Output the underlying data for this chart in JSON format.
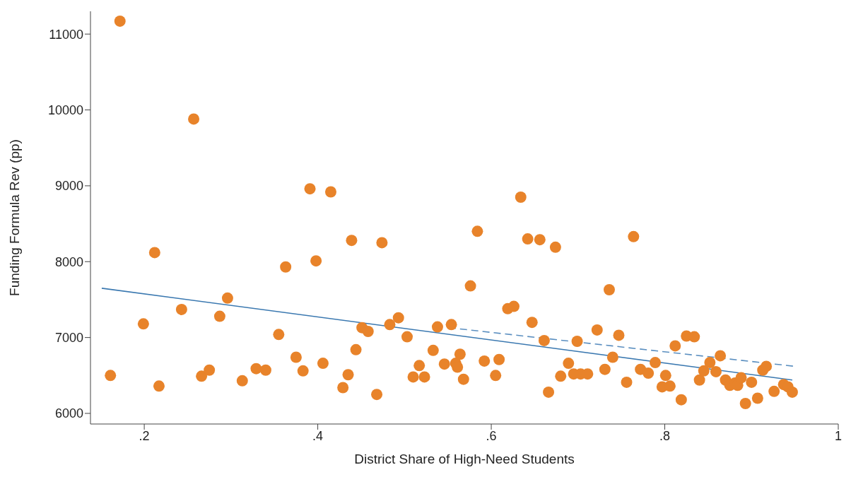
{
  "chart_data": {
    "type": "scatter",
    "xlabel": "District Share of High-Need Students",
    "ylabel": "Funding Formula Rev (pp)",
    "xlim": [
      0.138,
      1
    ],
    "ylim": [
      5860,
      11300
    ],
    "xticks": [
      {
        "value": 0.2,
        "label": ".2"
      },
      {
        "value": 0.4,
        "label": ".4"
      },
      {
        "value": 0.6,
        "label": ".6"
      },
      {
        "value": 0.8,
        "label": ".8"
      },
      1
    ],
    "yticks": [
      6000,
      7000,
      8000,
      9000,
      10000,
      11000
    ],
    "grid": false,
    "legend": false,
    "series": [
      {
        "marker": "circle",
        "color": "#e8832a",
        "x": [
          0.161,
          0.172,
          0.199,
          0.212,
          0.217,
          0.243,
          0.257,
          0.266,
          0.275,
          0.287,
          0.296,
          0.313,
          0.329,
          0.34,
          0.355,
          0.363,
          0.375,
          0.383,
          0.391,
          0.398,
          0.406,
          0.415,
          0.429,
          0.435,
          0.439,
          0.444,
          0.451,
          0.458,
          0.468,
          0.474,
          0.483,
          0.493,
          0.503,
          0.51,
          0.517,
          0.523,
          0.533,
          0.538,
          0.546,
          0.554,
          0.559,
          0.561,
          0.564,
          0.568,
          0.576,
          0.584,
          0.592,
          0.605,
          0.609,
          0.619,
          0.626,
          0.634,
          0.642,
          0.647,
          0.656,
          0.661,
          0.666,
          0.674,
          0.68,
          0.689,
          0.695,
          0.699,
          0.703,
          0.711,
          0.722,
          0.731,
          0.736,
          0.74,
          0.747,
          0.756,
          0.764,
          0.772,
          0.781,
          0.789,
          0.797,
          0.801,
          0.806,
          0.812,
          0.819,
          0.825,
          0.834,
          0.84,
          0.845,
          0.852,
          0.859,
          0.864,
          0.87,
          0.875,
          0.881,
          0.884,
          0.888,
          0.893,
          0.9,
          0.907,
          0.913,
          0.917,
          0.926,
          0.937,
          0.942,
          0.947
        ],
        "values": [
          6500,
          11170,
          7180,
          8120,
          6360,
          7370,
          9880,
          6490,
          6570,
          7280,
          7520,
          6430,
          6590,
          6570,
          7040,
          7930,
          6740,
          6560,
          8960,
          8010,
          6660,
          8920,
          6340,
          6510,
          8280,
          6840,
          7130,
          7080,
          6250,
          8250,
          7170,
          7260,
          7010,
          6480,
          6630,
          6480,
          6830,
          7140,
          6650,
          7170,
          6660,
          6610,
          6780,
          6450,
          7680,
          8400,
          6690,
          6500,
          6710,
          7380,
          7410,
          8850,
          8300,
          7200,
          8290,
          6960,
          6280,
          8190,
          6490,
          6660,
          6520,
          6950,
          6520,
          6520,
          7100,
          6580,
          7630,
          6740,
          7030,
          6410,
          8330,
          6580,
          6530,
          6670,
          6350,
          6500,
          6360,
          6890,
          6180,
          7020,
          7010,
          6440,
          6560,
          6670,
          6550,
          6760,
          6440,
          6370,
          6400,
          6370,
          6470,
          6130,
          6410,
          6200,
          6570,
          6620,
          6290,
          6380,
          6350,
          6280
        ]
      },
      {
        "type": "line",
        "color": "#3a78b0",
        "line_style": "solid",
        "marker": "none",
        "x": [
          0.151,
          0.947
        ],
        "values": [
          7650,
          6440
        ]
      },
      {
        "type": "line",
        "color": "#5b8fc0",
        "line_style": "dashed",
        "marker": "none",
        "x": [
          0.551,
          0.95
        ],
        "values": [
          7130,
          6620
        ]
      }
    ]
  }
}
